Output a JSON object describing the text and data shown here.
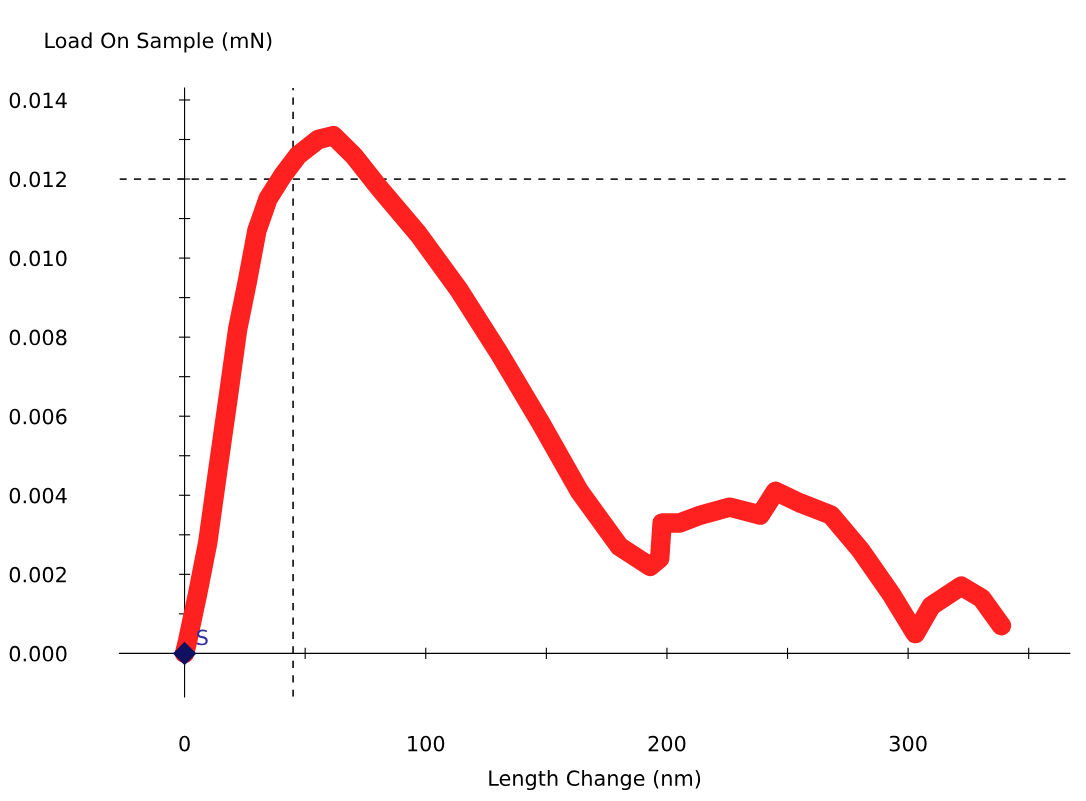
{
  "chart_data": {
    "type": "line",
    "xlabel": "Length Change (nm)",
    "ylabel": "Load On Sample (mN)",
    "xlim": [
      -27,
      367
    ],
    "ylim": [
      -0.0011,
      0.0143
    ],
    "xticks": [
      0,
      {
        "value": 50,
        "label": null
      },
      100,
      {
        "value": 150,
        "label": null
      },
      200,
      {
        "value": 250,
        "label": null
      },
      300,
      {
        "value": 350,
        "label": null
      }
    ],
    "yticks": [
      {
        "value": 0,
        "label": "0.000"
      },
      {
        "value": 0.001,
        "label": null
      },
      0.002,
      {
        "value": 0.003,
        "label": null
      },
      0.004,
      {
        "value": 0.005,
        "label": null
      },
      0.006,
      {
        "value": 0.007,
        "label": null
      },
      0.008,
      {
        "value": 0.009,
        "label": null
      },
      {
        "value": 0.01,
        "label": "0.010"
      },
      {
        "value": 0.011,
        "label": null
      },
      0.012,
      {
        "value": 0.013,
        "label": null
      },
      0.014
    ],
    "series": [
      {
        "color": "#ff2020",
        "x": [
          0,
          1.2,
          5.4,
          9.6,
          13.7,
          17.9,
          22,
          26,
          30,
          34.6,
          40.8,
          47,
          55.4,
          61.7,
          70,
          80.4,
          97,
          113.7,
          130.4,
          147,
          163.7,
          180.4,
          193,
          197,
          198,
          205.4,
          214,
          226,
          238.7,
          245,
          255.4,
          268,
          280.4,
          293,
          303,
          309.6,
          322,
          330.4,
          338.7
        ],
        "values": [
          0,
          0.0003,
          0.0015,
          0.0028,
          0.0046,
          0.0064,
          0.0082,
          0.0094,
          0.0107,
          0.0115,
          0.0121,
          0.0126,
          0.013,
          0.0131,
          0.0126,
          0.0118,
          0.0106,
          0.0092,
          0.0076,
          0.0059,
          0.0041,
          0.0027,
          0.0022,
          0.0024,
          0.0033,
          0.0033,
          0.0035,
          0.0037,
          0.0035,
          0.0041,
          0.0038,
          0.0035,
          0.0026,
          0.0015,
          0.0005,
          0.0012,
          0.0017,
          0.0014,
          0.0007
        ]
      },
      {
        "type": "scatter",
        "color": "#101060",
        "marker": "diamond",
        "x": [
          0
        ],
        "values": [
          0
        ]
      }
    ],
    "annotations": [
      "S"
    ],
    "ref_lines": [
      {
        "axis": "x",
        "value": 45,
        "color": "#222222",
        "line_style": "dashed"
      },
      {
        "axis": "y",
        "value": 0.012,
        "color": "#222222",
        "line_style": "dashed"
      }
    ]
  }
}
